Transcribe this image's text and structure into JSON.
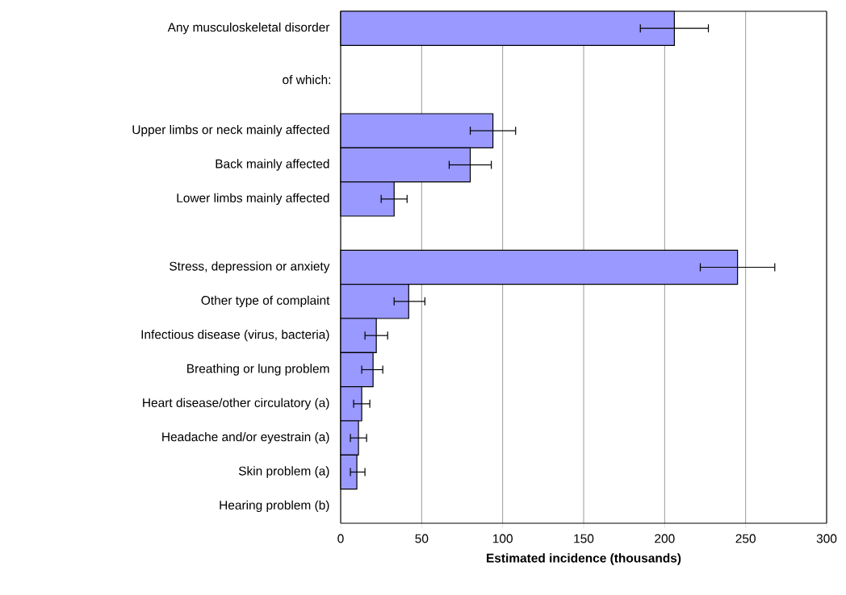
{
  "chart_data": {
    "type": "bar",
    "orientation": "horizontal",
    "xlabel": "Estimated incidence (thousands)",
    "categories": [
      "Any musculoskeletal disorder",
      null,
      null,
      "Upper limbs or neck mainly affected",
      "Back mainly affected",
      "Lower limbs mainly affected",
      null,
      "Stress, depression or anxiety",
      "Other type of complaint",
      "Infectious disease (virus, bacteria)",
      "Breathing or lung problem",
      "Heart disease/other circulatory (a)",
      "Headache and/or eyestrain (a)",
      "Skin problem (a)",
      "Hearing problem (b)"
    ],
    "values": [
      206,
      null,
      null,
      94,
      80,
      33,
      null,
      245,
      42,
      22,
      20,
      13,
      11,
      10,
      null
    ],
    "errors": [
      [
        185,
        227
      ],
      null,
      null,
      [
        80,
        108
      ],
      [
        67,
        93
      ],
      [
        25,
        41
      ],
      null,
      [
        222,
        268
      ],
      [
        33,
        52
      ],
      [
        15,
        29
      ],
      [
        13,
        26
      ],
      [
        8,
        18
      ],
      [
        6,
        16
      ],
      [
        6,
        15
      ],
      null
    ],
    "color": "#9999ff",
    "xlim": [
      0,
      300
    ],
    "xticks": [
      0,
      50,
      100,
      150,
      200,
      250,
      300
    ],
    "grid": "x",
    "annotations": [
      "of which:"
    ]
  }
}
